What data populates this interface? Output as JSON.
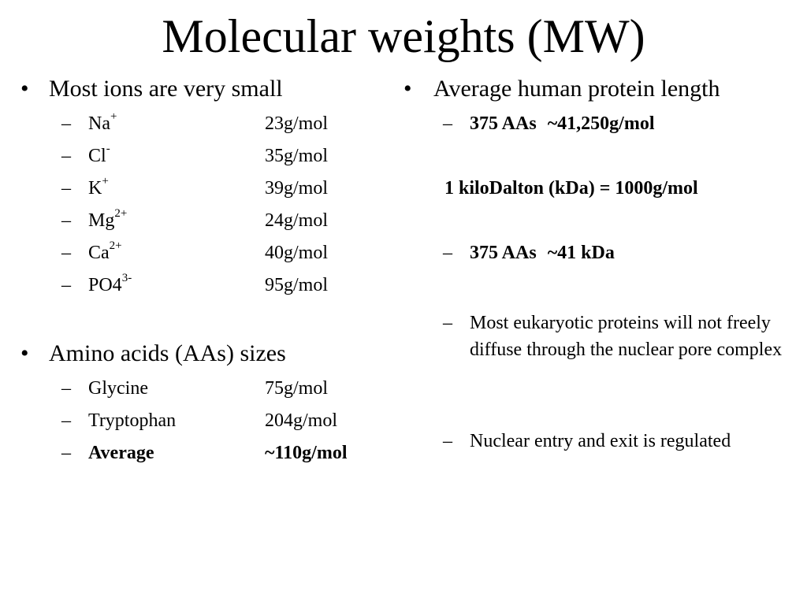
{
  "title": "Molecular weights (MW)",
  "left": {
    "ions": {
      "heading": "Most ions are very small",
      "items": [
        {
          "base": "Na",
          "sup": "+",
          "value": "23g/mol"
        },
        {
          "base": "Cl",
          "sup": "-",
          "value": "35g/mol"
        },
        {
          "base": "K",
          "sup": "+",
          "value": "39g/mol"
        },
        {
          "base": "Mg",
          "sup": "2+",
          "value": "24g/mol"
        },
        {
          "base": "Ca",
          "sup": "2+",
          "value": "40g/mol"
        },
        {
          "base": "PO4",
          "sup": "3-",
          "value": "95g/mol"
        }
      ]
    },
    "amino": {
      "heading": "Amino acids (AAs) sizes",
      "items": [
        {
          "name": "Glycine",
          "value": "75g/mol"
        },
        {
          "name": "Tryptophan",
          "value": "204g/mol"
        },
        {
          "name": "Average",
          "value": "~110g/mol"
        }
      ]
    }
  },
  "right": {
    "heading": "Average human protein length",
    "length_g": {
      "count": "375 AAs",
      "value": "~41,250g/mol"
    },
    "kda_definition": "1 kiloDalton (kDa) = 1000g/mol",
    "length_kda": {
      "count": "375 AAs",
      "value": "~41 kDa"
    },
    "note_diffuse": "Most eukaryotic proteins will not freely diffuse through the nuclear pore complex",
    "note_regulated": "Nuclear entry and exit is regulated"
  },
  "symbols": {
    "bullet": "•",
    "dash": "–"
  }
}
